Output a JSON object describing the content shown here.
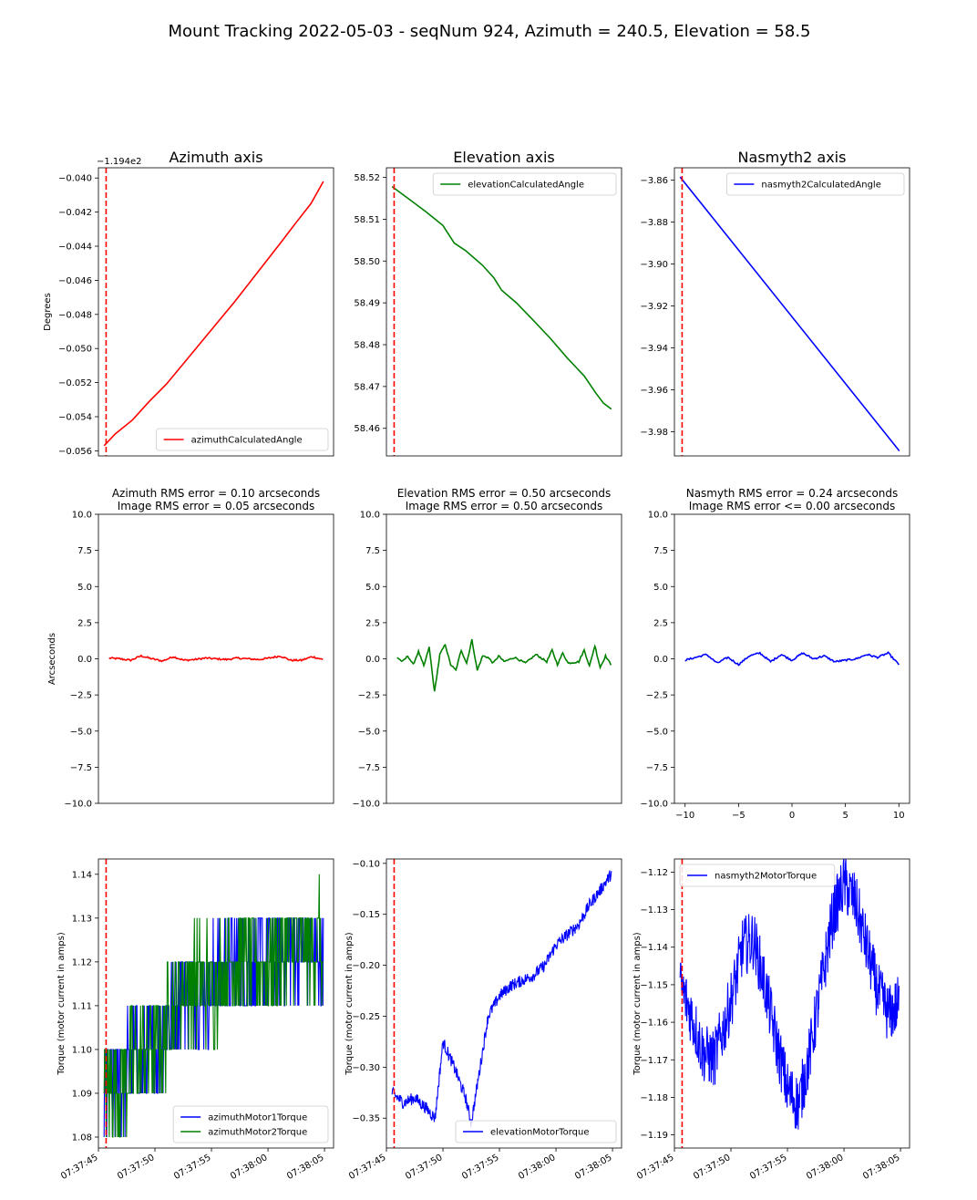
{
  "suptitle": "Mount Tracking 2022-05-03 - seqNum 924, Azimuth = 240.5, Elevation = 58.5",
  "colors": {
    "red": "#ff0000",
    "green": "#008000",
    "blue": "#0000ff",
    "marker": "#ff0000"
  },
  "chart_data": [
    {
      "type": "line",
      "title": "Azimuth axis",
      "ylabel": "Degrees",
      "offset_label": "−1.194e2",
      "ylim": [
        -0.0563,
        -0.0394
      ],
      "yticks": [
        -0.04,
        -0.042,
        -0.044,
        -0.046,
        -0.048,
        -0.05,
        -0.052,
        -0.054,
        -0.056
      ],
      "ytick_labels": [
        "−0.040",
        "−0.042",
        "−0.044",
        "−0.046",
        "−0.048",
        "−0.050",
        "−0.052",
        "−0.054",
        "−0.056"
      ],
      "xlim": [
        0,
        20.8
      ],
      "marker_x": 0.68,
      "legend": "lower right",
      "series": [
        {
          "name": "azimuthCalculatedAngle",
          "color": "red",
          "x": [
            0.5,
            1.5,
            3.0,
            4.5,
            6.0,
            8.0,
            10.0,
            12.0,
            14.0,
            16.0,
            17.5,
            18.8,
            19.9
          ],
          "y": [
            -0.0557,
            -0.055,
            -0.0542,
            -0.0531,
            -0.0521,
            -0.0505,
            -0.0489,
            -0.0473,
            -0.0456,
            -0.0439,
            -0.0426,
            -0.0415,
            -0.0402
          ]
        }
      ]
    },
    {
      "type": "line",
      "title": "Elevation axis",
      "ylim": [
        58.4534,
        58.5223
      ],
      "yticks": [
        58.46,
        58.47,
        58.48,
        58.49,
        58.5,
        58.51,
        58.52
      ],
      "ytick_labels": [
        "58.46",
        "58.47",
        "58.48",
        "58.49",
        "58.50",
        "58.51",
        "58.52"
      ],
      "xlim": [
        0,
        20.8
      ],
      "marker_x": 0.68,
      "legend": "upper right",
      "series": [
        {
          "name": "elevationCalculatedAngle",
          "color": "green",
          "x": [
            0.5,
            2.0,
            3.5,
            5.0,
            6.0,
            7.0,
            8.5,
            9.5,
            10.2,
            11.5,
            13.0,
            14.5,
            16.0,
            17.5,
            18.5,
            19.2,
            19.9
          ],
          "y": [
            58.5178,
            58.5148,
            58.5118,
            58.5085,
            58.5043,
            58.5025,
            58.499,
            58.496,
            58.493,
            58.49,
            58.4858,
            58.4815,
            58.4768,
            58.4725,
            58.4685,
            58.466,
            58.4646
          ]
        }
      ]
    },
    {
      "type": "line",
      "title": "Nasmyth2 axis",
      "ylim": [
        -3.9915,
        -3.8541
      ],
      "yticks": [
        -3.86,
        -3.88,
        -3.9,
        -3.92,
        -3.94,
        -3.96,
        -3.98
      ],
      "ytick_labels": [
        "−3.86",
        "−3.88",
        "−3.90",
        "−3.92",
        "−3.94",
        "−3.96",
        "−3.98"
      ],
      "xlim": [
        0,
        20.8
      ],
      "marker_x": 0.68,
      "legend": "upper right",
      "series": [
        {
          "name": "nasmyth2CalculatedAngle",
          "color": "blue",
          "x": [
            0.5,
            19.9
          ],
          "y": [
            -3.8585,
            -3.9891
          ]
        }
      ]
    },
    {
      "type": "line",
      "title_lines": [
        "Azimuth RMS error = 0.10 arcseconds",
        "Image RMS error = 0.05 arcseconds"
      ],
      "ylabel": "Arcseconds",
      "ylim": [
        -10,
        10
      ],
      "yticks": [
        10,
        7.5,
        5,
        2.5,
        0,
        -2.5,
        -5,
        -7.5,
        -10
      ],
      "ytick_labels": [
        "10.0",
        "7.5",
        "5.0",
        "2.5",
        "0.0",
        "−2.5",
        "−5.0",
        "−7.5",
        "−10.0"
      ],
      "xlim": [
        -11,
        11
      ],
      "series": [
        {
          "name": "",
          "color": "red",
          "x": [
            -10,
            -9,
            -8,
            -7,
            -6,
            -5,
            -4,
            -3,
            -2,
            -1,
            0,
            1,
            2,
            3,
            4,
            5,
            6,
            7,
            8,
            9,
            10
          ],
          "y": [
            0.05,
            0.0,
            -0.1,
            0.2,
            0.0,
            -0.15,
            0.15,
            -0.1,
            -0.05,
            0.05,
            0.0,
            -0.05,
            0.05,
            0.0,
            -0.05,
            0.05,
            0.2,
            -0.1,
            -0.1,
            0.15,
            -0.05
          ]
        }
      ]
    },
    {
      "type": "line",
      "title_lines": [
        "Elevation RMS error = 0.50 arcseconds",
        "Image RMS error = 0.50 arcseconds"
      ],
      "ylim": [
        -10,
        10
      ],
      "yticks": [
        10,
        7.5,
        5,
        2.5,
        0,
        -2.5,
        -5,
        -7.5,
        -10
      ],
      "ytick_labels": [
        "10.0",
        "7.5",
        "5.0",
        "2.5",
        "0.0",
        "−2.5",
        "−5.0",
        "−7.5",
        "−10.0"
      ],
      "xlim": [
        -11,
        11
      ],
      "series": [
        {
          "name": "",
          "color": "green",
          "x": [
            -10,
            -9.5,
            -9,
            -8.5,
            -8,
            -7.5,
            -7,
            -6.5,
            -6,
            -5.5,
            -5,
            -4.5,
            -4,
            -3.5,
            -3,
            -2.5,
            -2,
            -1.5,
            -1,
            -0.5,
            0,
            1,
            2,
            3,
            4,
            4.5,
            5,
            5.5,
            6,
            7,
            7.5,
            8,
            8.5,
            9,
            9.5,
            10
          ],
          "y": [
            0.1,
            -0.2,
            0.2,
            -0.4,
            0.5,
            -0.5,
            0.8,
            -2.3,
            0.3,
            1.0,
            -0.4,
            -0.8,
            0.6,
            -0.3,
            1.3,
            -0.8,
            0.2,
            0.1,
            -0.3,
            0.2,
            -0.2,
            0.1,
            -0.3,
            0.3,
            -0.2,
            0.6,
            -0.4,
            0.4,
            -0.3,
            -0.2,
            0.6,
            -0.5,
            0.9,
            -0.6,
            0.2,
            -0.4
          ]
        }
      ]
    },
    {
      "type": "line",
      "title_lines": [
        "Nasmyth RMS error = 0.24 arcseconds",
        "Image RMS error <= 0.00 arcseconds"
      ],
      "ylim": [
        -10,
        10
      ],
      "yticks": [
        10,
        7.5,
        5,
        2.5,
        0,
        -2.5,
        -5,
        -7.5,
        -10
      ],
      "ytick_labels": [
        "10.0",
        "7.5",
        "5.0",
        "2.5",
        "0.0",
        "−2.5",
        "−5.0",
        "−7.5",
        "−10.0"
      ],
      "xlim": [
        -11,
        11
      ],
      "xticks": [
        -10,
        -5,
        0,
        5,
        10
      ],
      "xtick_labels": [
        "−10",
        "−5",
        "0",
        "5",
        "10"
      ],
      "series": [
        {
          "name": "",
          "color": "blue",
          "x": [
            -10,
            -9,
            -8,
            -7,
            -6,
            -5,
            -4,
            -3,
            -2,
            -1,
            0,
            1,
            2,
            3,
            4,
            5,
            6,
            7,
            8,
            9,
            10
          ],
          "y": [
            -0.1,
            0.1,
            0.3,
            -0.3,
            0.1,
            -0.4,
            0.2,
            0.4,
            -0.2,
            0.3,
            -0.1,
            0.4,
            0.0,
            0.2,
            -0.2,
            -0.1,
            0.0,
            0.3,
            0.1,
            0.4,
            -0.4
          ]
        }
      ]
    },
    {
      "type": "line",
      "ylabel": "Torque (motor current in amps)",
      "ylim": [
        1.0775,
        1.1435
      ],
      "yticks": [
        1.08,
        1.09,
        1.1,
        1.11,
        1.12,
        1.13,
        1.14
      ],
      "ytick_labels": [
        "1.08",
        "1.09",
        "1.10",
        "1.11",
        "1.12",
        "1.13",
        "1.14"
      ],
      "xlim": [
        0,
        20.8
      ],
      "xticks": [
        0,
        5,
        10,
        15,
        20
      ],
      "xtick_labels": [
        "07:37:45",
        "07:37:50",
        "07:37:55",
        "07:38:00",
        "07:38:05"
      ],
      "marker_x": 0.68,
      "legend": "lower right",
      "noise": "step",
      "series": [
        {
          "name": "azimuthMotor1Torque",
          "color": "blue",
          "x": [
            0.5,
            2.5,
            5.0,
            6.0,
            7.5,
            10.0,
            12.5,
            15.5,
            17.5,
            19.9
          ],
          "y": [
            1.09,
            1.095,
            1.1,
            1.105,
            1.115,
            1.115,
            1.12,
            1.12,
            1.125,
            1.12
          ]
        },
        {
          "name": "azimuthMotor2Torque",
          "color": "green",
          "x": [
            0.5,
            2.5,
            5.0,
            6.0,
            7.5,
            10.0,
            12.5,
            15.5,
            17.5,
            19.9
          ],
          "y": [
            1.09,
            1.095,
            1.1,
            1.105,
            1.115,
            1.115,
            1.12,
            1.12,
            1.125,
            1.12
          ]
        }
      ]
    },
    {
      "type": "line",
      "ylabel": "Torque (motor current in amps)",
      "yticks": [
        -0.1,
        -0.15,
        -0.2,
        -0.25,
        -0.3,
        -0.35
      ],
      "ytick_labels": [
        "−0.10",
        "−0.15",
        "−0.20",
        "−0.25",
        "−0.30",
        "−0.35"
      ],
      "ylim": [
        -0.3793,
        -0.0957
      ],
      "xlim": [
        0,
        20.8
      ],
      "xticks": [
        0,
        5,
        10,
        15,
        20
      ],
      "xtick_labels": [
        "07:37:45",
        "07:37:50",
        "07:37:55",
        "07:38:00",
        "07:38:05"
      ],
      "marker_x": 0.68,
      "legend": "lower right",
      "noise": "jitter",
      "series": [
        {
          "name": "elevationMotorTorque",
          "color": "blue",
          "x": [
            0.5,
            1.5,
            2.5,
            3.5,
            4.3,
            5.0,
            6.0,
            7.0,
            7.5,
            8.0,
            9.0,
            10.0,
            11.0,
            12.0,
            13.0,
            14.0,
            15.0,
            16.0,
            17.0,
            18.0,
            19.0,
            19.9
          ],
          "y": [
            -0.325,
            -0.335,
            -0.33,
            -0.34,
            -0.35,
            -0.275,
            -0.3,
            -0.33,
            -0.355,
            -0.32,
            -0.25,
            -0.23,
            -0.22,
            -0.215,
            -0.21,
            -0.2,
            -0.18,
            -0.17,
            -0.16,
            -0.14,
            -0.125,
            -0.11
          ]
        }
      ]
    },
    {
      "type": "line",
      "ylabel": "Torque (motor current in amps)",
      "yticks": [
        -1.12,
        -1.13,
        -1.14,
        -1.15,
        -1.16,
        -1.17,
        -1.18,
        -1.19
      ],
      "ytick_labels": [
        "−1.12",
        "−1.13",
        "−1.14",
        "−1.15",
        "−1.16",
        "−1.17",
        "−1.18",
        "−1.19"
      ],
      "ylim": [
        -1.1935,
        -1.1165
      ],
      "xlim": [
        0,
        20.8
      ],
      "xticks": [
        0,
        5,
        10,
        15,
        20
      ],
      "xtick_labels": [
        "07:37:45",
        "07:37:50",
        "07:37:55",
        "07:38:00",
        "07:38:05"
      ],
      "marker_x": 0.68,
      "legend": "upper left",
      "noise": "jitter",
      "series": [
        {
          "name": "nasmyth2MotorTorque",
          "color": "blue",
          "x": [
            0.5,
            1.5,
            2.5,
            3.5,
            4.5,
            5.5,
            6.0,
            7.0,
            8.0,
            9.0,
            10.0,
            11.0,
            12.0,
            13.0,
            14.0,
            15.0,
            16.0,
            17.0,
            18.0,
            19.0,
            19.9
          ],
          "y": [
            -1.15,
            -1.158,
            -1.168,
            -1.17,
            -1.16,
            -1.148,
            -1.14,
            -1.138,
            -1.15,
            -1.165,
            -1.178,
            -1.182,
            -1.168,
            -1.15,
            -1.132,
            -1.123,
            -1.128,
            -1.14,
            -1.152,
            -1.158,
            -1.155
          ]
        }
      ]
    }
  ]
}
